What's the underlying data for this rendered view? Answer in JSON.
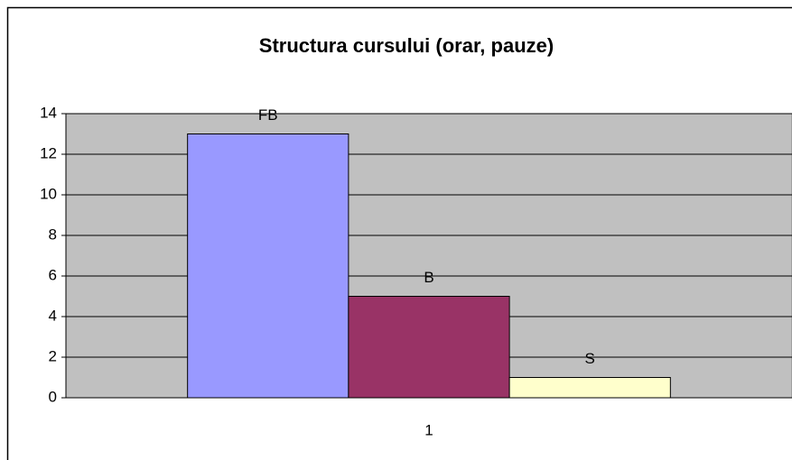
{
  "chart_data": {
    "type": "bar",
    "title": "Structura cursului (orar, pauze)",
    "categories": [
      "1"
    ],
    "series": [
      {
        "name": "FB",
        "color": "#9999ff",
        "values": [
          13
        ]
      },
      {
        "name": "B",
        "color": "#993366",
        "values": [
          5
        ]
      },
      {
        "name": "S",
        "color": "#ffffcc",
        "values": [
          1
        ]
      }
    ],
    "ylim": [
      0,
      14
    ],
    "yticks": [
      0,
      2,
      4,
      6,
      8,
      10,
      12,
      14
    ],
    "grid": true
  }
}
